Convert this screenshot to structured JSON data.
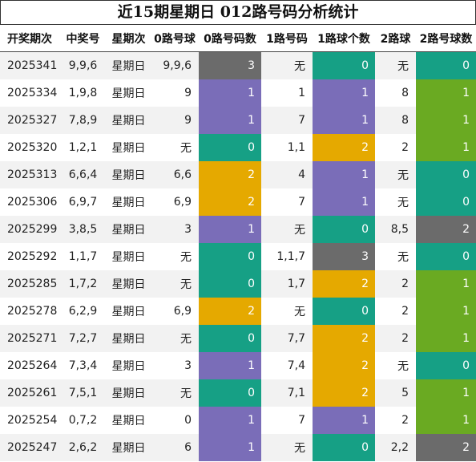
{
  "title": "近15期星期日 012路号码分析统计",
  "headers": [
    "开奖期次",
    "中奖号",
    "星期次",
    "0路号球",
    "0路号码数",
    "1路号码",
    "1路球个数",
    "2路球",
    "2路号球数"
  ],
  "rows": [
    {
      "issue": "2025341",
      "nums": "9,9,6",
      "week": "星期日",
      "r0": "9,9,6",
      "c0": 3,
      "r1": "无",
      "c1": 0,
      "r2": "无",
      "c2": 0
    },
    {
      "issue": "2025334",
      "nums": "1,9,8",
      "week": "星期日",
      "r0": "9",
      "c0": 1,
      "r1": "1",
      "c1": 1,
      "r2": "8",
      "c2": 1
    },
    {
      "issue": "2025327",
      "nums": "7,8,9",
      "week": "星期日",
      "r0": "9",
      "c0": 1,
      "r1": "7",
      "c1": 1,
      "r2": "8",
      "c2": 1
    },
    {
      "issue": "2025320",
      "nums": "1,2,1",
      "week": "星期日",
      "r0": "无",
      "c0": 0,
      "r1": "1,1",
      "c1": 2,
      "r2": "2",
      "c2": 1
    },
    {
      "issue": "2025313",
      "nums": "6,6,4",
      "week": "星期日",
      "r0": "6,6",
      "c0": 2,
      "r1": "4",
      "c1": 1,
      "r2": "无",
      "c2": 0
    },
    {
      "issue": "2025306",
      "nums": "6,9,7",
      "week": "星期日",
      "r0": "6,9",
      "c0": 2,
      "r1": "7",
      "c1": 1,
      "r2": "无",
      "c2": 0
    },
    {
      "issue": "2025299",
      "nums": "3,8,5",
      "week": "星期日",
      "r0": "3",
      "c0": 1,
      "r1": "无",
      "c1": 0,
      "r2": "8,5",
      "c2": 2
    },
    {
      "issue": "2025292",
      "nums": "1,1,7",
      "week": "星期日",
      "r0": "无",
      "c0": 0,
      "r1": "1,1,7",
      "c1": 3,
      "r2": "无",
      "c2": 0
    },
    {
      "issue": "2025285",
      "nums": "1,7,2",
      "week": "星期日",
      "r0": "无",
      "c0": 0,
      "r1": "1,7",
      "c1": 2,
      "r2": "2",
      "c2": 1
    },
    {
      "issue": "2025278",
      "nums": "6,2,9",
      "week": "星期日",
      "r0": "6,9",
      "c0": 2,
      "r1": "无",
      "c1": 0,
      "r2": "2",
      "c2": 1
    },
    {
      "issue": "2025271",
      "nums": "7,2,7",
      "week": "星期日",
      "r0": "无",
      "c0": 0,
      "r1": "7,7",
      "c1": 2,
      "r2": "2",
      "c2": 1
    },
    {
      "issue": "2025264",
      "nums": "7,3,4",
      "week": "星期日",
      "r0": "3",
      "c0": 1,
      "r1": "7,4",
      "c1": 2,
      "r2": "无",
      "c2": 0
    },
    {
      "issue": "2025261",
      "nums": "7,5,1",
      "week": "星期日",
      "r0": "无",
      "c0": 0,
      "r1": "7,1",
      "c1": 2,
      "r2": "5",
      "c2": 1
    },
    {
      "issue": "2025254",
      "nums": "0,7,2",
      "week": "星期日",
      "r0": "0",
      "c0": 1,
      "r1": "7",
      "c1": 1,
      "r2": "2",
      "c2": 1
    },
    {
      "issue": "2025247",
      "nums": "2,6,2",
      "week": "星期日",
      "r0": "6",
      "c0": 1,
      "r1": "无",
      "c1": 0,
      "r2": "2,2",
      "c2": 2
    }
  ],
  "colors": {
    "count_0": "#16a085",
    "count_1": "#7a6db8",
    "count_2": "#e5a900",
    "count_3": "#6b6b6b",
    "route2_count_1": "#6aaa22",
    "route2_count_2": "#6b6b6b",
    "stripe": "#f2f2f2"
  }
}
